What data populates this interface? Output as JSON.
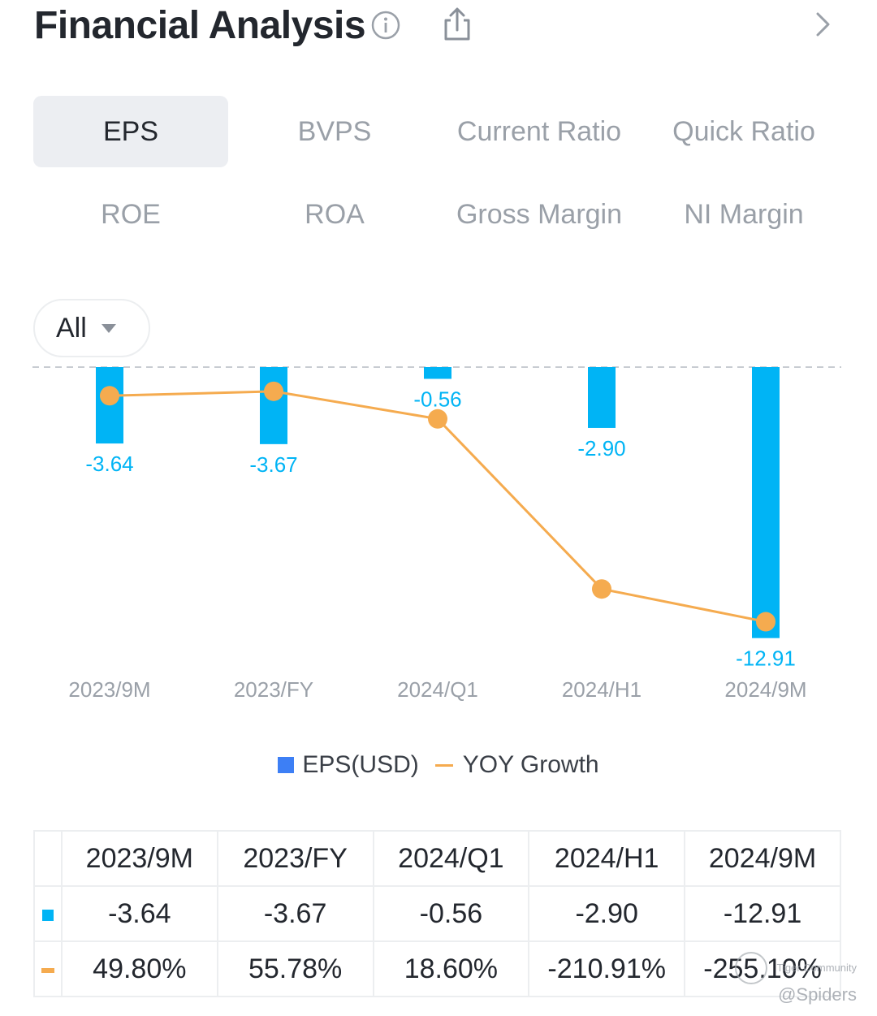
{
  "header": {
    "title": "Financial Analysis"
  },
  "tabs": [
    {
      "label": "EPS",
      "active": true
    },
    {
      "label": "BVPS",
      "active": false
    },
    {
      "label": "Current Ratio",
      "active": false
    },
    {
      "label": "Quick Ratio",
      "active": false
    },
    {
      "label": "ROE",
      "active": false
    },
    {
      "label": "ROA",
      "active": false
    },
    {
      "label": "Gross Margin",
      "active": false
    },
    {
      "label": "NI Margin",
      "active": false
    }
  ],
  "filter": {
    "label": "All"
  },
  "colors": {
    "bar": "#00b4f5",
    "line": "#f5ab4f",
    "legend_bar": "#3d7ff5",
    "positive": "#2fb36b",
    "negative": "#e05a55"
  },
  "chart_data": {
    "type": "bar",
    "categories": [
      "2023/9M",
      "2023/FY",
      "2024/Q1",
      "2024/H1",
      "2024/9M"
    ],
    "series": [
      {
        "name": "EPS(USD)",
        "type": "bar",
        "values": [
          -3.64,
          -3.67,
          -0.56,
          -2.9,
          -12.91
        ],
        "labels": [
          "-3.64",
          "-3.67",
          "-0.56",
          "-2.90",
          "-12.91"
        ]
      },
      {
        "name": "YOY Growth",
        "type": "line",
        "values": [
          49.8,
          55.78,
          18.6,
          -210.91,
          -255.1
        ]
      }
    ],
    "ylim": [
      -13,
      0
    ],
    "yoy_range": [
      -260,
      60
    ]
  },
  "legend": {
    "bar_label": "EPS(USD)",
    "line_label": "YOY Growth"
  },
  "table": {
    "headers": [
      "2023/9M",
      "2023/FY",
      "2024/Q1",
      "2024/H1",
      "2024/9M"
    ],
    "eps_row": [
      "-3.64",
      "-3.67",
      "-0.56",
      "-2.90",
      "-12.91"
    ],
    "yoy_row": [
      "49.80%",
      "55.78%",
      "18.60%",
      "-210.91%",
      "-255.10%"
    ]
  },
  "watermark": {
    "line1": "Tiger Community",
    "line2": "@Spiders"
  }
}
